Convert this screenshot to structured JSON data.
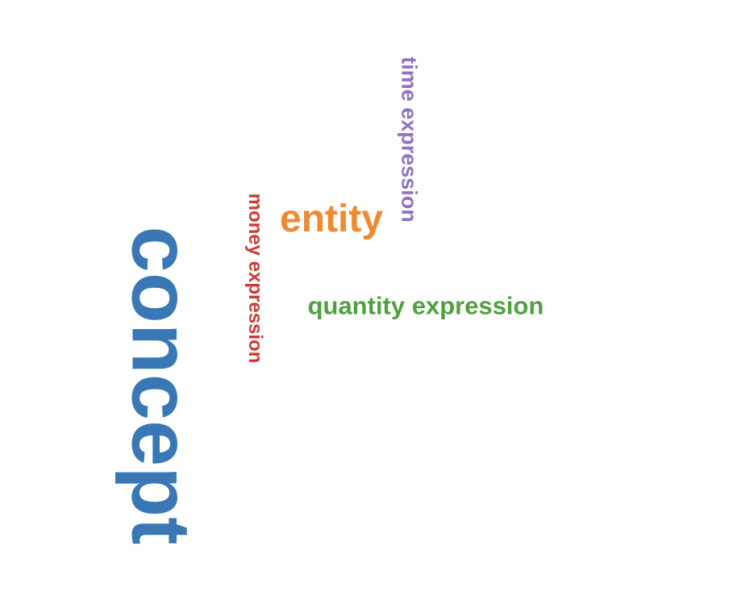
{
  "word_cloud": {
    "words": [
      {
        "key": "concept",
        "text": "concept",
        "color": "#3a78b5",
        "weight": 5,
        "orientation": "vertical"
      },
      {
        "key": "entity",
        "text": "entity",
        "color": "#ef8a33",
        "weight": 3,
        "orientation": "horizontal"
      },
      {
        "key": "time",
        "text": "time expression",
        "color": "#9271c2",
        "weight": 2,
        "orientation": "vertical"
      },
      {
        "key": "money",
        "text": "money expression",
        "color": "#cc3a34",
        "weight": 2,
        "orientation": "vertical"
      },
      {
        "key": "quantity",
        "text": "quantity expression",
        "color": "#4ea13e",
        "weight": 2,
        "orientation": "horizontal"
      }
    ]
  }
}
